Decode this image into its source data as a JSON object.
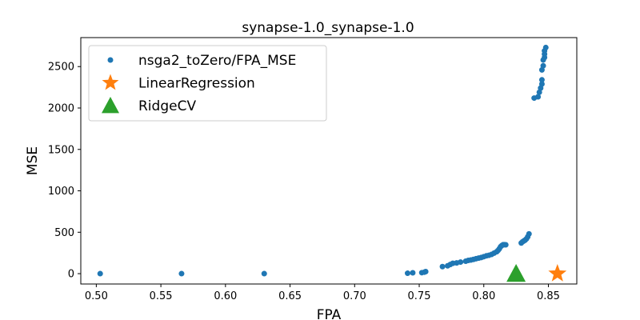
{
  "chart_data": {
    "type": "scatter",
    "title": "synapse-1.0_synapse-1.0",
    "xlabel": "FPA",
    "ylabel": "MSE",
    "xlim": [
      0.488,
      0.872
    ],
    "ylim": [
      -125,
      2850
    ],
    "xticks": [
      "0.50",
      "0.55",
      "0.60",
      "0.65",
      "0.70",
      "0.75",
      "0.80",
      "0.85"
    ],
    "yticks": [
      "0",
      "500",
      "1000",
      "1500",
      "2000",
      "2500"
    ],
    "grid": false,
    "legend_position": "upper-left",
    "series": [
      {
        "name": "nsga2_toZero/FPA_MSE",
        "marker": "dot",
        "color": "#1f77b4",
        "points": [
          [
            0.503,
            0
          ],
          [
            0.566,
            0
          ],
          [
            0.63,
            0
          ],
          [
            0.741,
            5
          ],
          [
            0.745,
            10
          ],
          [
            0.752,
            12
          ],
          [
            0.754,
            18
          ],
          [
            0.755,
            25
          ],
          [
            0.768,
            85
          ],
          [
            0.772,
            95
          ],
          [
            0.774,
            110
          ],
          [
            0.776,
            125
          ],
          [
            0.779,
            130
          ],
          [
            0.782,
            140
          ],
          [
            0.786,
            150
          ],
          [
            0.788,
            160
          ],
          [
            0.79,
            165
          ],
          [
            0.792,
            172
          ],
          [
            0.794,
            180
          ],
          [
            0.796,
            188
          ],
          [
            0.798,
            195
          ],
          [
            0.8,
            205
          ],
          [
            0.802,
            215
          ],
          [
            0.804,
            222
          ],
          [
            0.806,
            232
          ],
          [
            0.808,
            248
          ],
          [
            0.81,
            265
          ],
          [
            0.811,
            280
          ],
          [
            0.812,
            300
          ],
          [
            0.813,
            325
          ],
          [
            0.814,
            340
          ],
          [
            0.815,
            350
          ],
          [
            0.816,
            350
          ],
          [
            0.817,
            348
          ],
          [
            0.829,
            370
          ],
          [
            0.83,
            385
          ],
          [
            0.831,
            395
          ],
          [
            0.832,
            405
          ],
          [
            0.833,
            420
          ],
          [
            0.834,
            445
          ],
          [
            0.835,
            480
          ],
          [
            0.839,
            2120
          ],
          [
            0.842,
            2135
          ],
          [
            0.843,
            2190
          ],
          [
            0.844,
            2240
          ],
          [
            0.845,
            2290
          ],
          [
            0.845,
            2340
          ],
          [
            0.845,
            2460
          ],
          [
            0.846,
            2510
          ],
          [
            0.846,
            2580
          ],
          [
            0.847,
            2610
          ],
          [
            0.847,
            2650
          ],
          [
            0.847,
            2690
          ],
          [
            0.848,
            2730
          ]
        ]
      },
      {
        "name": "LinearRegression",
        "marker": "star",
        "color": "#ff7f0e",
        "points": [
          [
            0.857,
            0
          ]
        ]
      },
      {
        "name": "RidgeCV",
        "marker": "triangle",
        "color": "#2ca02c",
        "points": [
          [
            0.825,
            0
          ]
        ]
      }
    ]
  }
}
